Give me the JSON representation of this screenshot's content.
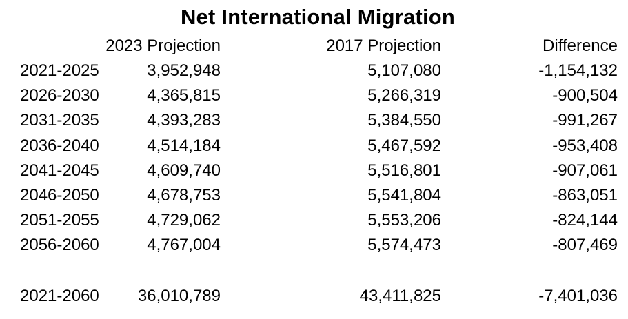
{
  "title": "Net International Migration",
  "headers": [
    "",
    "2023 Projection",
    "2017 Projection",
    "Difference"
  ],
  "rows": [
    {
      "period": "2021-2025",
      "proj2023": "3,952,948",
      "proj2017": "5,107,080",
      "difference": "-1,154,132"
    },
    {
      "period": "2026-2030",
      "proj2023": "4,365,815",
      "proj2017": "5,266,319",
      "difference": "-900,504"
    },
    {
      "period": "2031-2035",
      "proj2023": "4,393,283",
      "proj2017": "5,384,550",
      "difference": "-991,267"
    },
    {
      "period": "2036-2040",
      "proj2023": "4,514,184",
      "proj2017": "5,467,592",
      "difference": "-953,408"
    },
    {
      "period": "2041-2045",
      "proj2023": "4,609,740",
      "proj2017": "5,516,801",
      "difference": "-907,061"
    },
    {
      "period": "2046-2050",
      "proj2023": "4,678,753",
      "proj2017": "5,541,804",
      "difference": "-863,051"
    },
    {
      "period": "2051-2055",
      "proj2023": "4,729,062",
      "proj2017": "5,553,206",
      "difference": "-824,144"
    },
    {
      "period": "2056-2060",
      "proj2023": "4,767,004",
      "proj2017": "5,574,473",
      "difference": "-807,469"
    }
  ],
  "total": {
    "period": "2021-2060",
    "proj2023": "36,010,789",
    "proj2017": "43,411,825",
    "difference": "-7,401,036"
  }
}
